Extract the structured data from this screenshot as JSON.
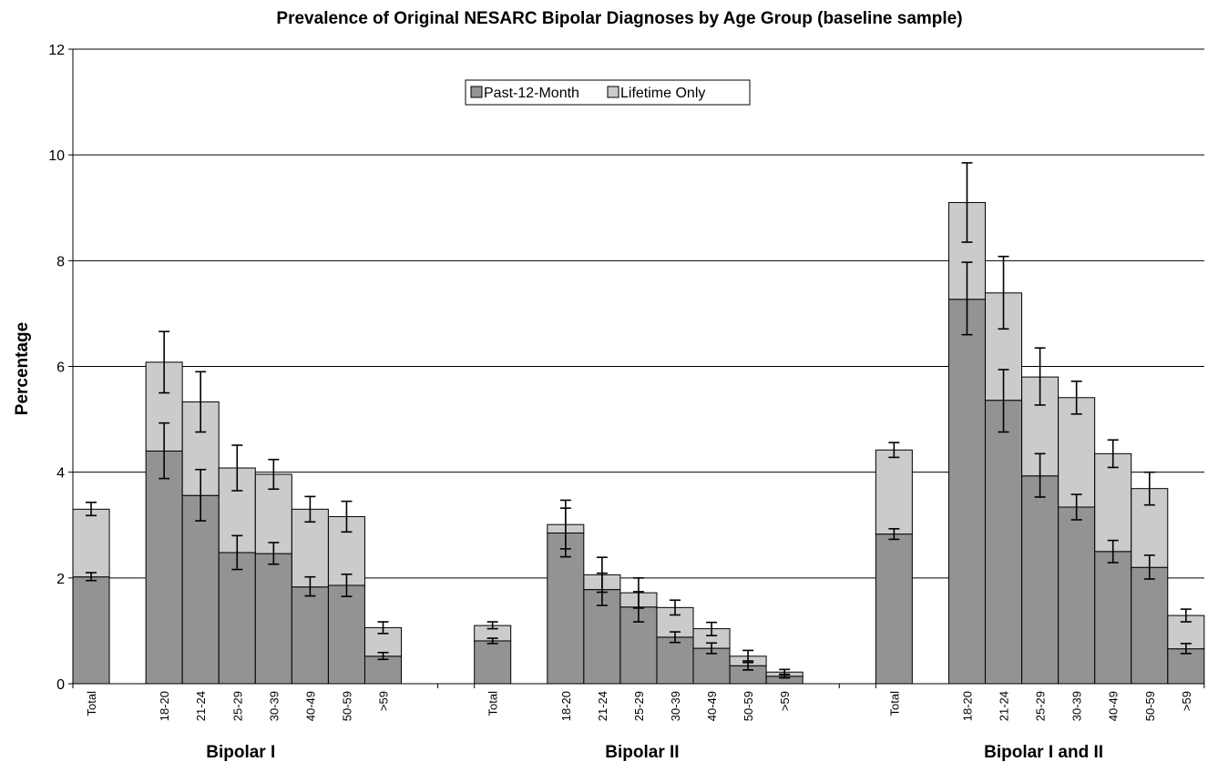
{
  "chart_data": {
    "type": "bar",
    "stacked": true,
    "error_bars": true,
    "title": "Prevalence of Original NESARC Bipolar Diagnoses by Age Group (baseline sample)",
    "ylabel": "Percentage",
    "ylim": [
      0,
      12
    ],
    "yticks": [
      "0",
      "2",
      "4",
      "6",
      "8",
      "10",
      "12"
    ],
    "grid": true,
    "legend_position": "top-center",
    "colors": {
      "past12": "#939393",
      "lifetime": "#cbcbcb",
      "grid": "#000000"
    },
    "groups": [
      {
        "label": "Bipolar I",
        "bars": [
          {
            "category": "Total",
            "past12": 2.02,
            "total": 3.3,
            "err_past12": [
              1.95,
              2.1
            ],
            "err_total": [
              3.18,
              3.43
            ]
          },
          {
            "category": "18-20",
            "past12": 4.4,
            "total": 6.08,
            "err_past12": [
              3.88,
              4.93
            ],
            "err_total": [
              5.5,
              6.66
            ]
          },
          {
            "category": "21-24",
            "past12": 3.56,
            "total": 5.33,
            "err_past12": [
              3.08,
              4.05
            ],
            "err_total": [
              4.76,
              5.9
            ]
          },
          {
            "category": "25-29",
            "past12": 2.48,
            "total": 4.08,
            "err_past12": [
              2.16,
              2.8
            ],
            "err_total": [
              3.65,
              4.51
            ]
          },
          {
            "category": "30-39",
            "past12": 2.46,
            "total": 3.96,
            "err_past12": [
              2.26,
              2.67
            ],
            "err_total": [
              3.68,
              4.24
            ]
          },
          {
            "category": "40-49",
            "past12": 1.83,
            "total": 3.3,
            "err_past12": [
              1.66,
              2.02
            ],
            "err_total": [
              3.06,
              3.54
            ]
          },
          {
            "category": "50-59",
            "past12": 1.86,
            "total": 3.16,
            "err_past12": [
              1.65,
              2.07
            ],
            "err_total": [
              2.87,
              3.45
            ]
          },
          {
            "category": ">59",
            "past12": 0.52,
            "total": 1.06,
            "err_past12": [
              0.46,
              0.59
            ],
            "err_total": [
              0.95,
              1.17
            ]
          }
        ]
      },
      {
        "label": "Bipolar II",
        "bars": [
          {
            "category": "Total",
            "past12": 0.81,
            "total": 1.1,
            "err_past12": [
              0.76,
              0.86
            ],
            "err_total": [
              1.04,
              1.17
            ]
          },
          {
            "category": "18-20",
            "past12": 2.85,
            "total": 3.01,
            "err_past12": [
              2.4,
              3.32
            ],
            "err_total": [
              2.55,
              3.47
            ]
          },
          {
            "category": "21-24",
            "past12": 1.78,
            "total": 2.06,
            "err_past12": [
              1.48,
              2.09
            ],
            "err_total": [
              1.73,
              2.39
            ]
          },
          {
            "category": "25-29",
            "past12": 1.45,
            "total": 1.72,
            "err_past12": [
              1.17,
              1.74
            ],
            "err_total": [
              1.43,
              2.0
            ]
          },
          {
            "category": "30-39",
            "past12": 0.88,
            "total": 1.44,
            "err_past12": [
              0.78,
              0.98
            ],
            "err_total": [
              1.3,
              1.58
            ]
          },
          {
            "category": "40-49",
            "past12": 0.67,
            "total": 1.04,
            "err_past12": [
              0.57,
              0.77
            ],
            "err_total": [
              0.91,
              1.16
            ]
          },
          {
            "category": "50-59",
            "past12": 0.34,
            "total": 0.52,
            "err_past12": [
              0.26,
              0.43
            ],
            "err_total": [
              0.4,
              0.63
            ]
          },
          {
            "category": ">59",
            "past12": 0.14,
            "total": 0.22,
            "err_past12": [
              0.11,
              0.18
            ],
            "err_total": [
              0.17,
              0.27
            ]
          }
        ]
      },
      {
        "label": "Bipolar I and II",
        "bars": [
          {
            "category": "Total",
            "past12": 2.83,
            "total": 4.42,
            "err_past12": [
              2.73,
              2.93
            ],
            "err_total": [
              4.28,
              4.56
            ]
          },
          {
            "category": "18-20",
            "past12": 7.27,
            "total": 9.1,
            "err_past12": [
              6.6,
              7.97
            ],
            "err_total": [
              8.35,
              9.85
            ]
          },
          {
            "category": "21-24",
            "past12": 5.36,
            "total": 7.39,
            "err_past12": [
              4.76,
              5.94
            ],
            "err_total": [
              6.71,
              8.08
            ]
          },
          {
            "category": "25-29",
            "past12": 3.93,
            "total": 5.8,
            "err_past12": [
              3.53,
              4.35
            ],
            "err_total": [
              5.27,
              6.35
            ]
          },
          {
            "category": "30-39",
            "past12": 3.34,
            "total": 5.41,
            "err_past12": [
              3.1,
              3.58
            ],
            "err_total": [
              5.1,
              5.72
            ]
          },
          {
            "category": "40-49",
            "past12": 2.5,
            "total": 4.35,
            "err_past12": [
              2.29,
              2.71
            ],
            "err_total": [
              4.09,
              4.61
            ]
          },
          {
            "category": "50-59",
            "past12": 2.2,
            "total": 3.69,
            "err_past12": [
              1.98,
              2.43
            ],
            "err_total": [
              3.38,
              4.0
            ]
          },
          {
            "category": ">59",
            "past12": 0.66,
            "total": 1.29,
            "err_past12": [
              0.57,
              0.76
            ],
            "err_total": [
              1.17,
              1.41
            ]
          }
        ]
      }
    ],
    "legend": [
      {
        "key": "past12",
        "label": "Past-12-Month"
      },
      {
        "key": "lifetime",
        "label": "Lifetime Only"
      }
    ]
  }
}
